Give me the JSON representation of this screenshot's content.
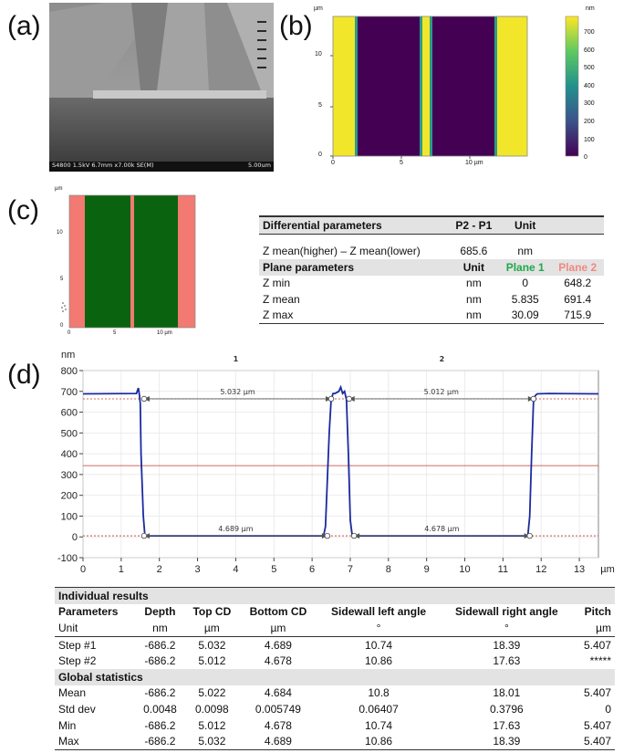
{
  "panel_labels": {
    "a": "(a)",
    "b": "(b)",
    "c": "(c)",
    "d": "(d)"
  },
  "sem": {
    "info": "S4800 1.5kV 6.7mm x7.00k SE(M)",
    "scale": "5.00um"
  },
  "map_b": {
    "yunit": "µm",
    "yticks": [
      "10",
      "5",
      "0"
    ],
    "xticks": [
      "0",
      "5",
      "10 µm"
    ],
    "colorbar_unit": "nm",
    "colorbar_ticks": [
      "700",
      "600",
      "500",
      "400",
      "300",
      "200",
      "100",
      "0"
    ],
    "colors": {
      "high": "#f2e62a",
      "low": "#440154",
      "edge": "#2a9c8a"
    }
  },
  "map_c": {
    "yunit": "µm",
    "yticks": [
      "10",
      "5",
      "0"
    ],
    "xticks": [
      "0",
      "5",
      "10 µm"
    ],
    "colors": {
      "plane1": "#0a640f",
      "plane2": "#f27a72"
    }
  },
  "params": {
    "diff_title": "Differential parameters",
    "diff_col": "P2 - P1",
    "unit_col": "Unit",
    "zmean_label": "Z mean(higher) – Z mean(lower)",
    "zmean_value": "685.6",
    "zmean_unit": "nm",
    "plane_title": "Plane parameters",
    "plane_unit": "Unit",
    "plane1": "Plane 1",
    "plane2": "Plane 2",
    "plane1_color": "#1fa84a",
    "plane2_color": "#f08a80",
    "rows": [
      {
        "label": "Z min",
        "unit": "nm",
        "p1": "0",
        "p2": "648.2"
      },
      {
        "label": "Z mean",
        "unit": "nm",
        "p1": "5.835",
        "p2": "691.4"
      },
      {
        "label": "Z max",
        "unit": "nm",
        "p1": "30.09",
        "p2": "715.9"
      }
    ]
  },
  "chart_data": {
    "type": "line",
    "yunit": "nm",
    "xunit": "µm",
    "xlim": [
      0,
      13.5
    ],
    "ylim": [
      -100,
      800
    ],
    "xticks": [
      0,
      1,
      2,
      3,
      4,
      5,
      6,
      7,
      8,
      9,
      10,
      11,
      12,
      13
    ],
    "yticks": [
      -100,
      0,
      100,
      200,
      300,
      400,
      500,
      600,
      700,
      800
    ],
    "region_labels": [
      {
        "text": "1",
        "x": 4.0
      },
      {
        "text": "2",
        "x": 9.4
      }
    ],
    "profile": {
      "x": [
        0,
        1.4,
        1.45,
        1.48,
        1.5,
        1.52,
        1.58,
        1.62,
        1.7,
        6.3,
        6.35,
        6.45,
        6.5,
        6.55,
        6.6,
        6.7,
        6.75,
        6.8,
        6.85,
        6.9,
        6.95,
        7.0,
        7.05,
        7.1,
        11.65,
        11.7,
        11.75,
        11.8,
        11.85,
        11.9,
        12.2,
        13.5
      ],
      "y": [
        688,
        690,
        716,
        680,
        640,
        400,
        100,
        8,
        5,
        5,
        50,
        500,
        660,
        690,
        690,
        700,
        720,
        690,
        700,
        660,
        400,
        80,
        8,
        5,
        5,
        100,
        400,
        660,
        680,
        688,
        690,
        688
      ]
    },
    "top_cd": [
      {
        "x1": 1.6,
        "x2": 6.5,
        "y": 664,
        "label": "5.032 µm"
      },
      {
        "x1": 6.97,
        "x2": 11.8,
        "y": 664,
        "label": "5.012 µm"
      }
    ],
    "bottom_cd": [
      {
        "x1": 1.6,
        "x2": 6.4,
        "y": 5,
        "label": "4.689 µm"
      },
      {
        "x1": 7.1,
        "x2": 11.7,
        "y": 5,
        "label": "4.678 µm"
      }
    ],
    "ref_lines": [
      664,
      343,
      5
    ],
    "colors": {
      "profile": "#1a2aa0",
      "ref": "#c0392b",
      "cd": "#555555"
    }
  },
  "results": {
    "title": "Individual results",
    "headers": [
      "Parameters",
      "Depth",
      "Top CD",
      "Bottom CD",
      "Sidewall left angle",
      "Sidewall right angle",
      "Pitch"
    ],
    "units": [
      "Unit",
      "nm",
      "µm",
      "µm",
      "°",
      "°",
      "µm"
    ],
    "steps": [
      [
        "Step #1",
        "-686.2",
        "5.032",
        "4.689",
        "10.74",
        "18.39",
        "5.407"
      ],
      [
        "Step #2",
        "-686.2",
        "5.012",
        "4.678",
        "10.86",
        "17.63",
        "*****"
      ]
    ],
    "global_title": "Global statistics",
    "stats": [
      [
        "Mean",
        "-686.2",
        "5.022",
        "4.684",
        "10.8",
        "18.01",
        "5.407"
      ],
      [
        "Std dev",
        "0.0048",
        "0.0098",
        "0.005749",
        "0.06407",
        "0.3796",
        "0"
      ],
      [
        "Min",
        "-686.2",
        "5.012",
        "4.678",
        "10.74",
        "17.63",
        "5.407"
      ],
      [
        "Max",
        "-686.2",
        "5.032",
        "4.689",
        "10.86",
        "18.39",
        "5.407"
      ]
    ]
  }
}
